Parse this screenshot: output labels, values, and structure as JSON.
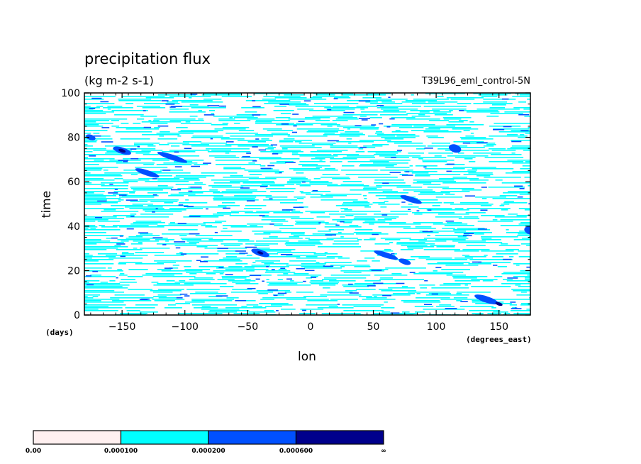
{
  "chart_data": {
    "type": "heatmap",
    "title": "precipitation flux",
    "units": "(kg m-2 s-1)",
    "experiment": "T39L96_eml_control-5N",
    "xlabel": "lon",
    "xunits": "(degrees_east)",
    "ylabel": "time",
    "yunits": "(days)",
    "xlim": [
      -180,
      175
    ],
    "ylim": [
      0,
      100
    ],
    "xticks": [
      -150,
      -100,
      -50,
      0,
      50,
      100,
      150
    ],
    "xtick_labels": [
      "−150",
      "−100",
      "−50",
      "0",
      "50",
      "100",
      "150"
    ],
    "yticks": [
      0,
      20,
      40,
      60,
      80,
      100
    ],
    "ytick_labels": [
      "0",
      "20",
      "40",
      "60",
      "80",
      "100"
    ],
    "colorbar": {
      "levels": [
        "0.00",
        "0.000100",
        "0.000200",
        "0.000600",
        "∞"
      ],
      "colors": [
        "#fff0f0",
        "#00ffff",
        "#0050ff",
        "#00008c"
      ]
    },
    "features": [
      {
        "level": 2,
        "lon": -150,
        "time": 74,
        "dlon": 15,
        "dt": 1.2
      },
      {
        "level": 2,
        "lon": -110,
        "time": 71,
        "dlon": 25,
        "dt": 1.0
      },
      {
        "level": 2,
        "lon": -130,
        "time": 64,
        "dlon": 20,
        "dt": 1.0
      },
      {
        "level": 2,
        "lon": -40,
        "time": 28,
        "dlon": 15,
        "dt": 1.2
      },
      {
        "level": 2,
        "lon": 60,
        "time": 27,
        "dlon": 20,
        "dt": 1.0
      },
      {
        "level": 2,
        "lon": 75,
        "time": 24,
        "dlon": 10,
        "dt": 1.0
      },
      {
        "level": 2,
        "lon": 140,
        "time": 7,
        "dlon": 20,
        "dt": 1.2
      },
      {
        "level": 2,
        "lon": 115,
        "time": 75,
        "dlon": 10,
        "dt": 1.5
      },
      {
        "level": 2,
        "lon": 175,
        "time": 38,
        "dlon": 10,
        "dt": 1.5
      },
      {
        "level": 2,
        "lon": 80,
        "time": 52,
        "dlon": 18,
        "dt": 1.0
      },
      {
        "level": 2,
        "lon": -175,
        "time": 80,
        "dlon": 8,
        "dt": 1.0
      },
      {
        "level": 3,
        "lon": -150,
        "time": 74,
        "dlon": 6,
        "dt": 0.6
      },
      {
        "level": 3,
        "lon": 150,
        "time": 5,
        "dlon": 6,
        "dt": 0.6
      },
      {
        "level": 3,
        "lon": -40,
        "time": 28,
        "dlon": 5,
        "dt": 0.5
      }
    ]
  }
}
